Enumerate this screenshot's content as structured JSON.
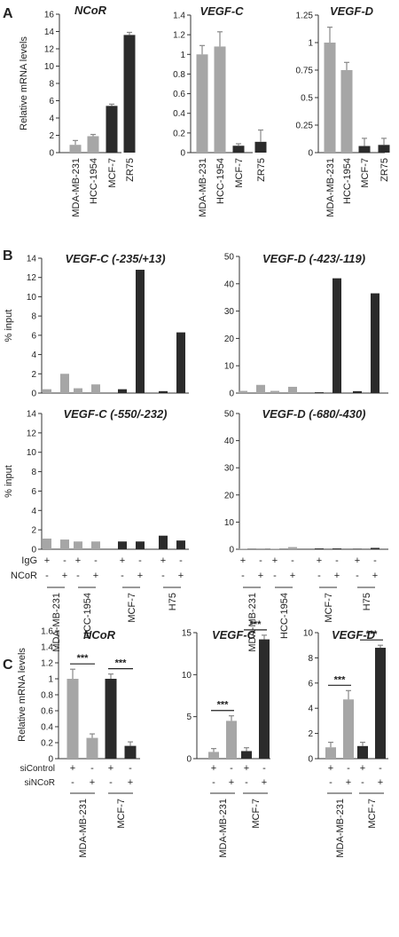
{
  "colors": {
    "light": "#a6a6a6",
    "dark": "#2b2b2b",
    "error": "#888888"
  },
  "panel_letters": [
    "A",
    "B",
    "C"
  ],
  "axis_labels": {
    "relative_mrna": "Relative mRNA levels",
    "pct_input": "% input"
  },
  "chart_data": [
    {
      "id": "A1",
      "panel": "A",
      "type": "bar",
      "title": "NCoR",
      "ylabel": "Relative mRNA levels",
      "ylim": [
        0,
        16
      ],
      "yticks": [
        0,
        2,
        4,
        6,
        8,
        10,
        12,
        14,
        16
      ],
      "categories": [
        "MDA-MB-231",
        "HCC-1954",
        "MCF-7",
        "ZR75"
      ],
      "values": [
        0.9,
        1.9,
        5.4,
        13.6
      ],
      "errors": [
        0.5,
        0.2,
        0.2,
        0.3
      ],
      "colors": [
        "light",
        "light",
        "dark",
        "dark"
      ]
    },
    {
      "id": "A2",
      "panel": "A",
      "type": "bar",
      "title": "VEGF-C",
      "ylim": [
        0,
        1.4
      ],
      "yticks": [
        0,
        0.2,
        0.4,
        0.6,
        0.8,
        1.0,
        1.2,
        1.4
      ],
      "categories": [
        "MDA-MB-231",
        "HCC-1954",
        "MCF-7",
        "ZR75"
      ],
      "values": [
        1.0,
        1.08,
        0.07,
        0.11
      ],
      "errors": [
        0.09,
        0.15,
        0.02,
        0.12
      ],
      "colors": [
        "light",
        "light",
        "dark",
        "dark"
      ]
    },
    {
      "id": "A3",
      "panel": "A",
      "type": "bar",
      "title": "VEGF-D",
      "ylim": [
        0,
        1.25
      ],
      "yticks": [
        0,
        0.25,
        0.5,
        0.75,
        1.0,
        1.25
      ],
      "categories": [
        "MDA-MB-231",
        "HCC-1954",
        "MCF-7",
        "ZR75"
      ],
      "values": [
        1.0,
        0.75,
        0.06,
        0.07
      ],
      "errors": [
        0.14,
        0.07,
        0.07,
        0.06
      ],
      "colors": [
        "light",
        "light",
        "dark",
        "dark"
      ]
    },
    {
      "id": "B1",
      "panel": "B",
      "type": "bar",
      "title": "VEGF-C (-235/+13)",
      "ylabel": "% input",
      "ylim": [
        0,
        14
      ],
      "yticks": [
        0,
        2,
        4,
        6,
        8,
        10,
        12,
        14
      ],
      "groups": [
        "MDA-MB-231",
        "HCC-1954",
        "MCF-7",
        "H75"
      ],
      "series": [
        {
          "name": "IgG",
          "values": [
            0.4,
            0.5,
            0.4,
            0.2
          ]
        },
        {
          "name": "NCoR",
          "values": [
            2.0,
            0.9,
            12.8,
            6.3
          ]
        }
      ],
      "group_colors": [
        "light",
        "light",
        "dark",
        "dark"
      ]
    },
    {
      "id": "B2",
      "panel": "B",
      "type": "bar",
      "title": "VEGF-D (-423/-119)",
      "ylim": [
        0,
        50
      ],
      "yticks": [
        0,
        10,
        20,
        30,
        40,
        50
      ],
      "groups": [
        "MDA-MB-231",
        "HCC-1954",
        "MCF-7",
        "H75"
      ],
      "series": [
        {
          "name": "IgG",
          "values": [
            0.8,
            0.8,
            0.3,
            0.7
          ]
        },
        {
          "name": "NCoR",
          "values": [
            3.0,
            2.3,
            42.0,
            36.5
          ]
        }
      ],
      "group_colors": [
        "light",
        "light",
        "dark",
        "dark"
      ]
    },
    {
      "id": "B3",
      "panel": "B",
      "type": "bar",
      "title": "VEGF-C (-550/-232)",
      "ylabel": "% input",
      "ylim": [
        0,
        14
      ],
      "yticks": [
        0,
        2,
        4,
        6,
        8,
        10,
        12,
        14
      ],
      "groups": [
        "MDA-MB-231",
        "HCC-1954",
        "MCF-7",
        "H75"
      ],
      "series": [
        {
          "name": "IgG",
          "values": [
            1.1,
            0.8,
            0.8,
            1.4
          ]
        },
        {
          "name": "NCoR",
          "values": [
            1.0,
            0.8,
            0.8,
            0.9
          ]
        }
      ],
      "group_colors": [
        "light",
        "light",
        "dark",
        "dark"
      ],
      "row_labels": [
        "IgG",
        "NCoR"
      ],
      "row_signs": [
        [
          "+",
          "-"
        ],
        [
          "-",
          "+"
        ]
      ]
    },
    {
      "id": "B4",
      "panel": "B",
      "type": "bar",
      "title": "VEGF-D (-680/-430)",
      "ylim": [
        0,
        50
      ],
      "yticks": [
        0,
        10,
        20,
        30,
        40,
        50
      ],
      "groups": [
        "MDA-MB-231",
        "HCC-1954",
        "MCF-7",
        "H75"
      ],
      "series": [
        {
          "name": "IgG",
          "values": [
            0.2,
            0.2,
            0.3,
            0.2
          ]
        },
        {
          "name": "NCoR",
          "values": [
            0.3,
            0.8,
            0.3,
            0.5
          ]
        }
      ],
      "group_colors": [
        "light",
        "light",
        "dark",
        "dark"
      ],
      "row_signs": [
        [
          "+",
          "-"
        ],
        [
          "-",
          "+"
        ]
      ]
    },
    {
      "id": "C1",
      "panel": "C",
      "type": "bar",
      "title": "NCoR",
      "ylabel": "Relative mRNA levels",
      "ylim": [
        0,
        1.6
      ],
      "yticks": [
        0,
        0.2,
        0.4,
        0.6,
        0.8,
        1.0,
        1.2,
        1.4,
        1.6
      ],
      "groups": [
        "MDA-MB-231",
        "MCF-7"
      ],
      "series": [
        {
          "name": "siControl",
          "values": [
            1.0,
            1.0
          ],
          "errors": [
            0.12,
            0.06
          ]
        },
        {
          "name": "siNCoR",
          "values": [
            0.26,
            0.16
          ],
          "errors": [
            0.05,
            0.05
          ]
        }
      ],
      "group_colors": [
        "light",
        "dark"
      ],
      "significance": [
        "***",
        "***"
      ],
      "row_labels": [
        "siControl",
        "siNCoR"
      ],
      "row_signs": [
        [
          "+",
          "-"
        ],
        [
          "-",
          "+"
        ]
      ]
    },
    {
      "id": "C2",
      "panel": "C",
      "type": "bar",
      "title": "VEGF-C",
      "ylim": [
        0,
        15
      ],
      "yticks": [
        0,
        5,
        10,
        15
      ],
      "groups": [
        "MDA-MB-231",
        "MCF-7"
      ],
      "series": [
        {
          "name": "siControl",
          "values": [
            0.8,
            0.9
          ],
          "errors": [
            0.4,
            0.4
          ]
        },
        {
          "name": "siNCoR",
          "values": [
            4.5,
            14.2
          ],
          "errors": [
            0.6,
            0.5
          ]
        }
      ],
      "group_colors": [
        "light",
        "dark"
      ],
      "significance": [
        "***",
        "***"
      ],
      "row_signs": [
        [
          "+",
          "-"
        ],
        [
          "-",
          "+"
        ]
      ]
    },
    {
      "id": "C3",
      "panel": "C",
      "type": "bar",
      "title": "VEGF-D",
      "ylim": [
        0,
        10
      ],
      "yticks": [
        0,
        2,
        4,
        6,
        8,
        10
      ],
      "groups": [
        "MDA-MB-231",
        "MCF-7"
      ],
      "series": [
        {
          "name": "siControl",
          "values": [
            0.9,
            1.0
          ],
          "errors": [
            0.4,
            0.3
          ]
        },
        {
          "name": "siNCoR",
          "values": [
            4.7,
            8.8
          ],
          "errors": [
            0.7,
            0.2
          ]
        }
      ],
      "group_colors": [
        "light",
        "dark"
      ],
      "significance": [
        "***",
        "***"
      ],
      "row_signs": [
        [
          "+",
          "-"
        ],
        [
          "-",
          "+"
        ]
      ]
    }
  ]
}
